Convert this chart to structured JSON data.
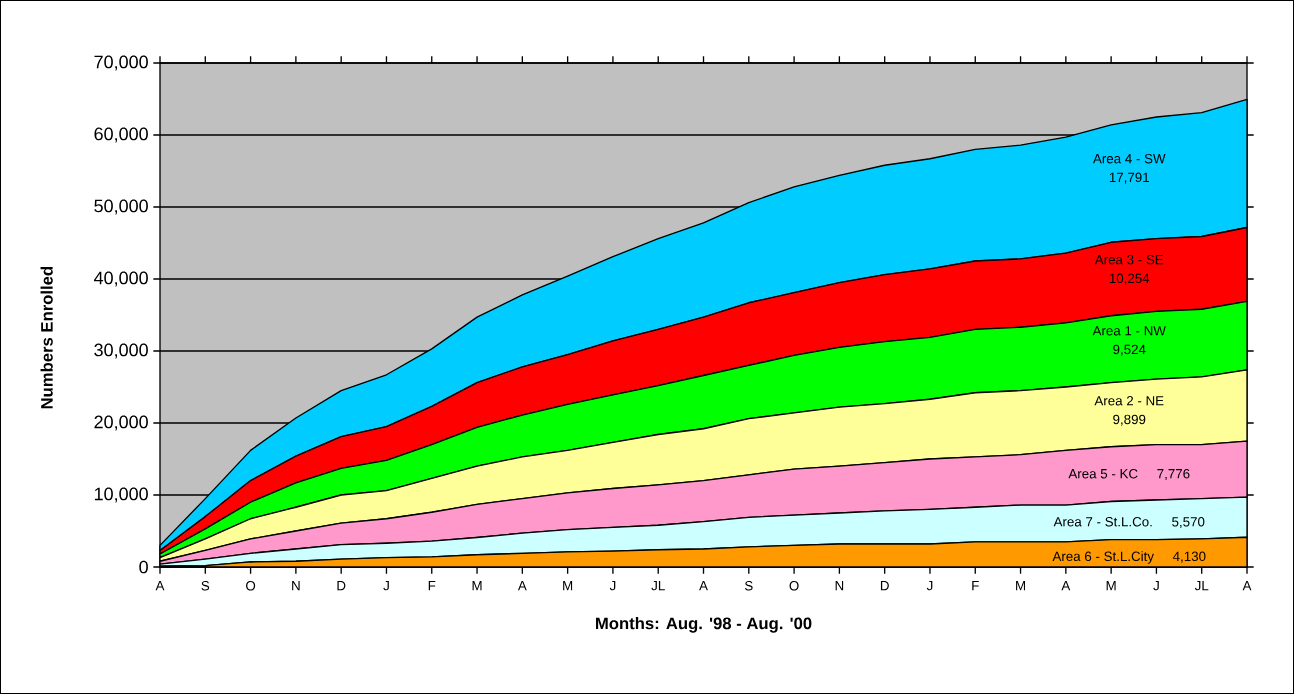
{
  "chart_data": {
    "type": "area",
    "stacked": true,
    "grid": "y",
    "xlabel": "Months:  Aug. '98 - Aug. '00",
    "ylabel": "Numbers Enrolled",
    "categories": [
      "A",
      "S",
      "O",
      "N",
      "D",
      "J",
      "F",
      "M",
      "A",
      "M",
      "J",
      "JL",
      "A",
      "S",
      "O",
      "N",
      "D",
      "J",
      "F",
      "M",
      "A",
      "M",
      "J",
      "JL",
      "A"
    ],
    "ylim": [
      0,
      70000
    ],
    "annotations": [
      "4,130",
      "5,570",
      "7,776",
      "9,899",
      "9,524",
      "10,254",
      "17,791"
    ],
    "yticks": [
      0,
      {
        "value": 10000,
        "label": "10,000"
      },
      {
        "value": 20000,
        "label": "20,000"
      },
      {
        "value": 30000,
        "label": "30,000"
      },
      {
        "value": 40000,
        "label": "40,000"
      },
      {
        "value": 50000,
        "label": "50,000"
      },
      {
        "value": 60000,
        "label": "60,000"
      },
      {
        "value": 70000,
        "label": "70,000"
      }
    ],
    "series": [
      {
        "name": "Area 6 - St.L.City",
        "color": "#ff9900",
        "values": [
          100,
          200,
          700,
          800,
          1100,
          1300,
          1400,
          1700,
          1900,
          2100,
          2200,
          2400,
          2500,
          2800,
          3000,
          3200,
          3200,
          3200,
          3500,
          3500,
          3500,
          3800,
          3800,
          3900,
          4130
        ]
      },
      {
        "name": "Area 7 - St.L.Co.",
        "color": "#ccffff",
        "values": [
          300,
          900,
          1200,
          1700,
          2000,
          2000,
          2200,
          2400,
          2800,
          3100,
          3300,
          3400,
          3800,
          4100,
          4200,
          4300,
          4600,
          4800,
          4800,
          5100,
          5100,
          5300,
          5500,
          5600,
          5570
        ]
      },
      {
        "name": "Area 5 - KC",
        "color": "#ff99cc",
        "values": [
          400,
          1200,
          2000,
          2500,
          3000,
          3400,
          4000,
          4600,
          4800,
          5100,
          5400,
          5600,
          5700,
          5900,
          6400,
          6500,
          6700,
          7000,
          7000,
          7000,
          7600,
          7600,
          7700,
          7500,
          7776
        ]
      },
      {
        "name": "Area 2 - NE",
        "color": "#ffff99",
        "values": [
          500,
          1600,
          2800,
          3300,
          3900,
          3900,
          4700,
          5300,
          5800,
          5900,
          6400,
          7000,
          7200,
          7800,
          7800,
          8200,
          8200,
          8300,
          8900,
          8900,
          8800,
          8900,
          9100,
          9400,
          9899
        ]
      },
      {
        "name": "Area 1 - NW",
        "color": "#00ff00",
        "values": [
          500,
          1400,
          2300,
          3400,
          3700,
          4200,
          4700,
          5400,
          5800,
          6400,
          6600,
          6800,
          7400,
          7400,
          8000,
          8300,
          8600,
          8600,
          8800,
          8800,
          8900,
          9300,
          9400,
          9400,
          9524
        ]
      },
      {
        "name": "Area 3 - SE",
        "color": "#ff0000",
        "values": [
          500,
          1700,
          3000,
          3700,
          4400,
          4700,
          5300,
          6200,
          6700,
          6900,
          7500,
          7800,
          8100,
          8700,
          8700,
          9000,
          9300,
          9500,
          9500,
          9500,
          9700,
          10200,
          10100,
          10100,
          10254
        ]
      },
      {
        "name": "Area 4 - SW",
        "color": "#00ccff",
        "values": [
          700,
          2500,
          4200,
          5300,
          6400,
          7200,
          8000,
          9100,
          10000,
          10900,
          11700,
          12600,
          13100,
          13900,
          14700,
          14900,
          15200,
          15300,
          15500,
          15800,
          16100,
          16300,
          16900,
          17200,
          17791
        ]
      }
    ]
  }
}
